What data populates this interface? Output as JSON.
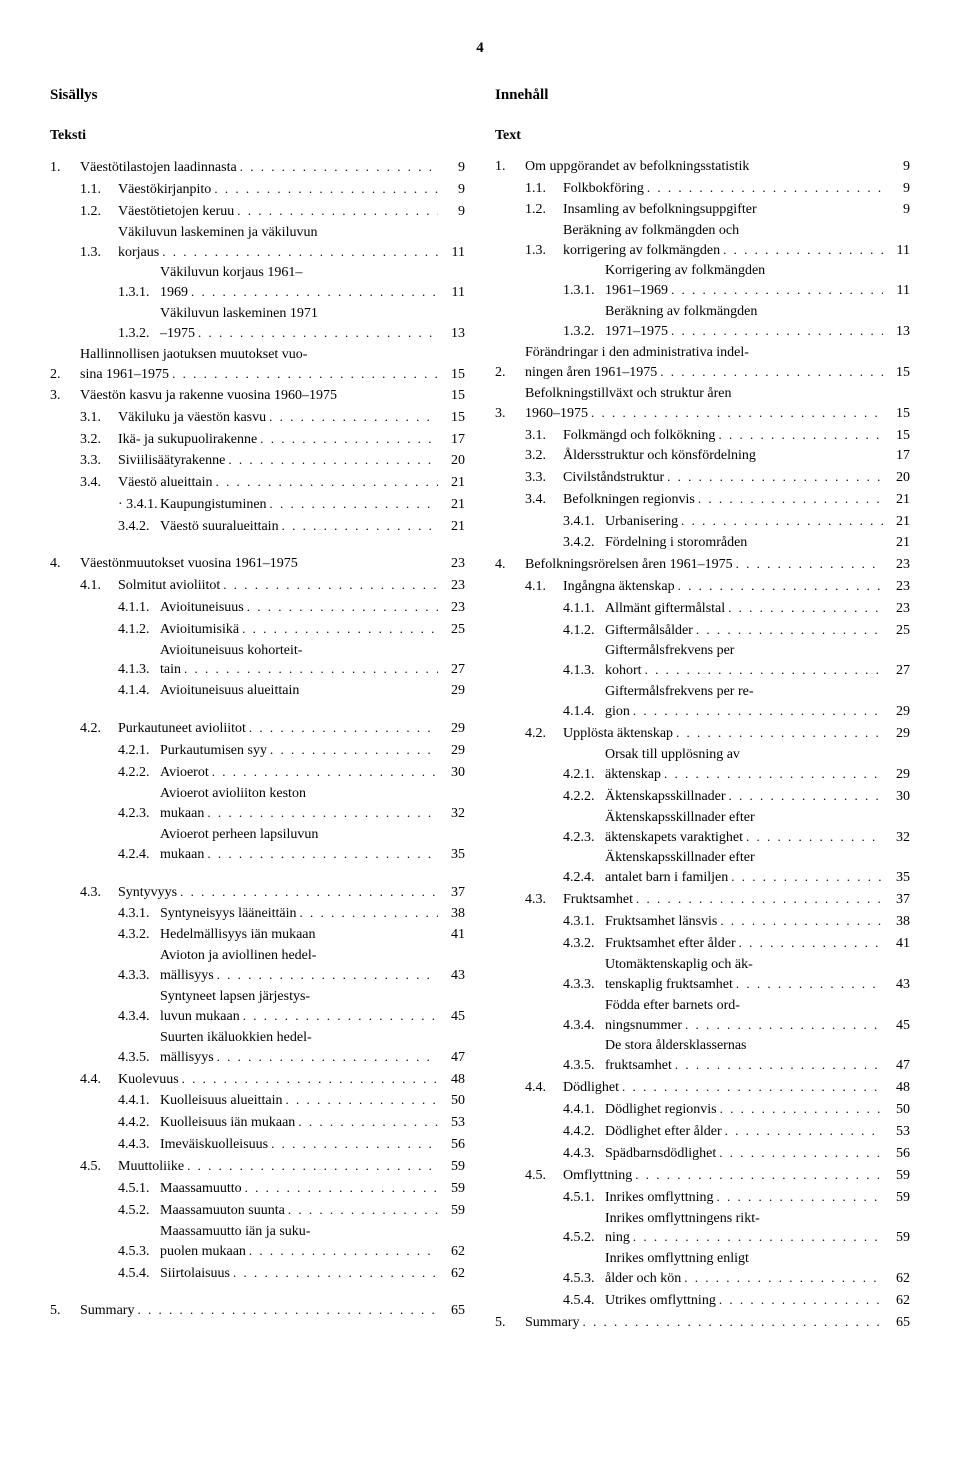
{
  "page_number": "4",
  "left": {
    "title": "Sisällys",
    "subtitle": "Teksti",
    "entries": [
      {
        "num": "1.",
        "indent": 0,
        "text": "Väestötilastojen laadinnasta",
        "page": "9",
        "leader": true
      },
      {
        "num": "1.1.",
        "indent": 1,
        "text": "Väestökirjanpito",
        "page": "9",
        "leader": true
      },
      {
        "num": "1.2.",
        "indent": 1,
        "text": "Väestötietojen keruu",
        "page": "9",
        "leader": true
      },
      {
        "num": "1.3.",
        "indent": 1,
        "text": "Väkiluvun laskeminen ja väkiluvun",
        "cont": "korjaus",
        "page": "11",
        "leader": true
      },
      {
        "num": "1.3.1.",
        "indent": 2,
        "text": "Väkiluvun korjaus 1961–",
        "cont": "1969",
        "page": "11",
        "leader": true
      },
      {
        "num": "1.3.2.",
        "indent": 2,
        "text": "Väkiluvun laskeminen 1971",
        "cont": "–1975",
        "page": "13",
        "leader": true
      },
      {
        "num": "2.",
        "indent": 0,
        "text": "Hallinnollisen jaotuksen muutokset vuo-",
        "cont": "sina 1961–1975",
        "page": "15",
        "leader": true
      },
      {
        "num": "3.",
        "indent": 0,
        "text": "Väestön kasvu ja rakenne vuosina 1960–1975",
        "page": "15",
        "leader": false
      },
      {
        "num": "3.1.",
        "indent": 1,
        "text": "Väkiluku ja väestön kasvu",
        "page": "15",
        "leader": true
      },
      {
        "num": "3.2.",
        "indent": 1,
        "text": "Ikä- ja sukupuolirakenne",
        "page": "17",
        "leader": true
      },
      {
        "num": "3.3.",
        "indent": 1,
        "text": "Siviilisäätyrakenne",
        "page": "20",
        "leader": true
      },
      {
        "num": "3.4.",
        "indent": 1,
        "text": "Väestö alueittain",
        "page": "21",
        "leader": true
      },
      {
        "num": "3.4.1.",
        "indent": 2,
        "pre": "·",
        "text": "Kaupungistuminen",
        "page": "21",
        "leader": true
      },
      {
        "num": "3.4.2.",
        "indent": 2,
        "text": "Väestö suuralueittain",
        "page": "21",
        "leader": true,
        "gap": true
      },
      {
        "num": "4.",
        "indent": 0,
        "text": "Väestönmuutokset vuosina 1961–1975",
        "page": "23",
        "leader": false,
        "space": true
      },
      {
        "num": "4.1.",
        "indent": 1,
        "text": "Solmitut avioliitot",
        "page": "23",
        "leader": true
      },
      {
        "num": "4.1.1.",
        "indent": 2,
        "text": "Avioituneisuus",
        "page": "23",
        "leader": true
      },
      {
        "num": "4.1.2.",
        "indent": 2,
        "text": "Avioitumisikä",
        "page": "25",
        "leader": true
      },
      {
        "num": "4.1.3.",
        "indent": 2,
        "text": "Avioituneisuus kohorteit-",
        "cont": "tain",
        "page": "27",
        "leader": true
      },
      {
        "num": "4.1.4.",
        "indent": 2,
        "text": "Avioituneisuus alueittain",
        "page": "29",
        "leader": false,
        "gap": true
      },
      {
        "num": "4.2.",
        "indent": 1,
        "text": "Purkautuneet avioliitot",
        "page": "29",
        "leader": true,
        "space": true
      },
      {
        "num": "4.2.1.",
        "indent": 2,
        "text": "Purkautumisen syy",
        "page": "29",
        "leader": true
      },
      {
        "num": "4.2.2.",
        "indent": 2,
        "text": "Avioerot",
        "page": "30",
        "leader": true
      },
      {
        "num": "4.2.3.",
        "indent": 2,
        "text": "Avioerot avioliiton keston",
        "cont": "mukaan",
        "page": "32",
        "leader": true
      },
      {
        "num": "4.2.4.",
        "indent": 2,
        "text": "Avioerot perheen lapsiluvun",
        "cont": "mukaan",
        "page": "35",
        "leader": true,
        "gap": true
      },
      {
        "num": "4.3.",
        "indent": 1,
        "text": "Syntyvyys",
        "page": "37",
        "leader": true,
        "space": true
      },
      {
        "num": "4.3.1.",
        "indent": 2,
        "text": "Syntyneisyys lääneittäin",
        "page": "38",
        "leader": true
      },
      {
        "num": "4.3.2.",
        "indent": 2,
        "text": "Hedelmällisyys iän mukaan",
        "page": "41",
        "leader": false
      },
      {
        "num": "4.3.3.",
        "indent": 2,
        "text": "Avioton ja aviollinen hedel-",
        "cont": "mällisyys",
        "page": "43",
        "leader": true
      },
      {
        "num": "4.3.4.",
        "indent": 2,
        "text": "Syntyneet lapsen järjestys-",
        "cont": "luvun mukaan",
        "page": "45",
        "leader": true
      },
      {
        "num": "4.3.5.",
        "indent": 2,
        "text": "Suurten ikäluokkien hedel-",
        "cont": "mällisyys",
        "page": "47",
        "leader": true
      },
      {
        "num": "4.4.",
        "indent": 1,
        "text": "Kuolevuus",
        "page": "48",
        "leader": true
      },
      {
        "num": "4.4.1.",
        "indent": 2,
        "text": "Kuolleisuus alueittain",
        "page": "50",
        "leader": true
      },
      {
        "num": "4.4.2.",
        "indent": 2,
        "text": "Kuolleisuus iän mukaan",
        "page": "53",
        "leader": true
      },
      {
        "num": "4.4.3.",
        "indent": 2,
        "text": "Imeväiskuolleisuus",
        "page": "56",
        "leader": true
      },
      {
        "num": "4.5.",
        "indent": 1,
        "text": "Muuttoliike",
        "page": "59",
        "leader": true
      },
      {
        "num": "4.5.1.",
        "indent": 2,
        "text": "Maassamuutto",
        "page": "59",
        "leader": true
      },
      {
        "num": "4.5.2.",
        "indent": 2,
        "text": "Maassamuuton suunta",
        "page": "59",
        "leader": true
      },
      {
        "num": "4.5.3.",
        "indent": 2,
        "text": "Maassamuutto iän ja suku-",
        "cont": "puolen mukaan",
        "page": "62",
        "leader": true
      },
      {
        "num": "4.5.4.",
        "indent": 2,
        "text": "Siirtolaisuus",
        "page": "62",
        "leader": true,
        "gap": true
      },
      {
        "num": "5.",
        "indent": 0,
        "text": "Summary",
        "page": "65",
        "leader": true,
        "space": true
      }
    ]
  },
  "right": {
    "title": "Innehåll",
    "subtitle": "Text",
    "entries": [
      {
        "num": "1.",
        "indent": 0,
        "text": "Om uppgörandet av befolkningsstatistik",
        "page": "9",
        "leader": false
      },
      {
        "num": "1.1.",
        "indent": 1,
        "text": "Folkbokföring",
        "page": "9",
        "leader": true
      },
      {
        "num": "1.2.",
        "indent": 1,
        "text": "Insamling av befolkningsuppgifter",
        "page": "9",
        "leader": false
      },
      {
        "num": "1.3.",
        "indent": 1,
        "text": "Beräkning av folkmängden och",
        "cont": "korrigering av folkmängden",
        "page": "11",
        "leader": true
      },
      {
        "num": "1.3.1.",
        "indent": 2,
        "text": "Korrigering av folkmängden",
        "cont": "1961–1969",
        "page": "11",
        "leader": true
      },
      {
        "num": "1.3.2.",
        "indent": 2,
        "text": "Beräkning av folkmängden",
        "cont": "1971–1975",
        "page": "13",
        "leader": true
      },
      {
        "num": "2.",
        "indent": 0,
        "text": "Förändringar i den administrativa indel-",
        "cont": "ningen åren 1961–1975",
        "page": "15",
        "leader": true
      },
      {
        "num": "3.",
        "indent": 0,
        "text": "Befolkningstillväxt och struktur åren",
        "cont": "1960–1975",
        "page": "15",
        "leader": true
      },
      {
        "num": "3.1.",
        "indent": 1,
        "text": "Folkmängd och folkökning",
        "page": "15",
        "leader": true
      },
      {
        "num": "3.2.",
        "indent": 1,
        "text": "Åldersstruktur och könsfördelning",
        "page": "17",
        "leader": false
      },
      {
        "num": "3.3.",
        "indent": 1,
        "text": "Civilståndstruktur",
        "page": "20",
        "leader": true
      },
      {
        "num": "3.4.",
        "indent": 1,
        "text": "Befolkningen regionvis",
        "page": "21",
        "leader": true
      },
      {
        "num": "3.4.1.",
        "indent": 2,
        "text": "Urbanisering",
        "page": "21",
        "leader": true
      },
      {
        "num": "3.4.2.",
        "indent": 2,
        "text": "Fördelning i storområden",
        "page": "21",
        "leader": false
      },
      {
        "num": "4.",
        "indent": 0,
        "text": "Befolkningsrörelsen åren 1961–1975",
        "page": "23",
        "leader": true
      },
      {
        "num": "4.1.",
        "indent": 1,
        "text": "Ingångna äktenskap",
        "page": "23",
        "leader": true
      },
      {
        "num": "4.1.1.",
        "indent": 2,
        "text": "Allmänt giftermålstal",
        "page": "23",
        "leader": true
      },
      {
        "num": "4.1.2.",
        "indent": 2,
        "text": "Giftermålsålder",
        "page": "25",
        "leader": true
      },
      {
        "num": "4.1.3.",
        "indent": 2,
        "text": "Giftermålsfrekvens per",
        "cont": "kohort",
        "page": "27",
        "leader": true
      },
      {
        "num": "4.1.4.",
        "indent": 2,
        "text": "Giftermålsfrekvens per re-",
        "cont": "gion",
        "page": "29",
        "leader": true
      },
      {
        "num": "4.2.",
        "indent": 1,
        "text": "Upplösta äktenskap",
        "page": "29",
        "leader": true
      },
      {
        "num": "4.2.1.",
        "indent": 2,
        "text": "Orsak till upplösning av",
        "cont": "äktenskap",
        "page": "29",
        "leader": true
      },
      {
        "num": "4.2.2.",
        "indent": 2,
        "text": "Äktenskapsskillnader",
        "page": "30",
        "leader": true
      },
      {
        "num": "4.2.3.",
        "indent": 2,
        "text": "Äktenskapsskillnader efter",
        "cont": "äktenskapets varaktighet",
        "page": "32",
        "leader": true
      },
      {
        "num": "4.2.4.",
        "indent": 2,
        "text": "Äktenskapsskillnader efter",
        "cont": "antalet barn i familjen",
        "page": "35",
        "leader": true
      },
      {
        "num": "4.3.",
        "indent": 1,
        "text": "Fruktsamhet",
        "page": "37",
        "leader": true
      },
      {
        "num": "4.3.1.",
        "indent": 2,
        "text": "Fruktsamhet länsvis",
        "page": "38",
        "leader": true
      },
      {
        "num": "4.3.2.",
        "indent": 2,
        "text": "Fruktsamhet efter ålder",
        "page": "41",
        "leader": true
      },
      {
        "num": "4.3.3.",
        "indent": 2,
        "text": "Utomäktenskaplig och äk-",
        "cont": "tenskaplig fruktsamhet",
        "page": "43",
        "leader": true
      },
      {
        "num": "4.3.4.",
        "indent": 2,
        "text": "Födda efter barnets ord-",
        "cont": "ningsnummer",
        "page": "45",
        "leader": true
      },
      {
        "num": "4.3.5.",
        "indent": 2,
        "text": "De stora åldersklassernas",
        "cont": "fruktsamhet",
        "page": "47",
        "leader": true
      },
      {
        "num": "4.4.",
        "indent": 1,
        "text": "Dödlighet",
        "page": "48",
        "leader": true
      },
      {
        "num": "4.4.1.",
        "indent": 2,
        "text": "Dödlighet regionvis",
        "page": "50",
        "leader": true
      },
      {
        "num": "4.4.2.",
        "indent": 2,
        "text": "Dödlighet efter ålder",
        "page": "53",
        "leader": true
      },
      {
        "num": "4.4.3.",
        "indent": 2,
        "text": "Spädbarnsdödlighet",
        "page": "56",
        "leader": true
      },
      {
        "num": "4.5.",
        "indent": 1,
        "text": "Omflyttning",
        "page": "59",
        "leader": true
      },
      {
        "num": "4.5.1.",
        "indent": 2,
        "text": "Inrikes omflyttning",
        "page": "59",
        "leader": true
      },
      {
        "num": "4.5.2.",
        "indent": 2,
        "text": "Inrikes omflyttningens rikt-",
        "cont": "ning",
        "page": "59",
        "leader": true
      },
      {
        "num": "4.5.3.",
        "indent": 2,
        "text": "Inrikes omflyttning enligt",
        "cont": "ålder och kön",
        "page": "62",
        "leader": true
      },
      {
        "num": "4.5.4.",
        "indent": 2,
        "text": "Utrikes omflyttning",
        "page": "62",
        "leader": true
      },
      {
        "num": "5.",
        "indent": 0,
        "text": "Summary",
        "page": "65",
        "leader": true
      }
    ]
  },
  "indent_widths": [
    30,
    68,
    110
  ],
  "indent_text_offsets": [
    30,
    38,
    46
  ],
  "dots": ". . . . . . . . . . . . . . . . . . . . . . . . . . . . . . . . . . . . . . . ."
}
